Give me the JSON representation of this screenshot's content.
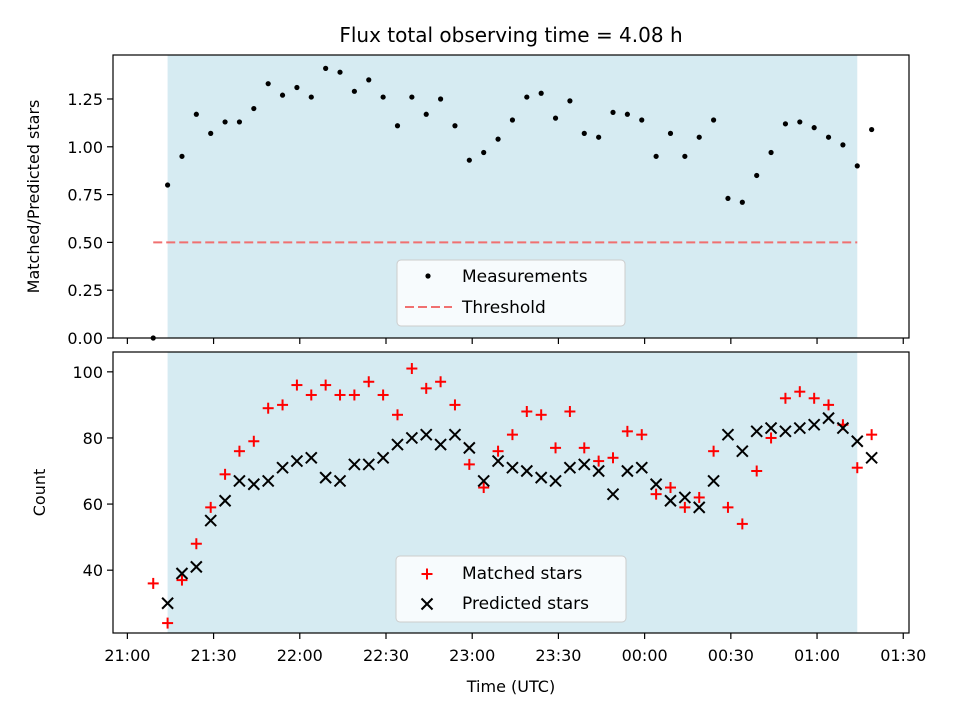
{
  "chart_data": [
    {
      "type": "scatter",
      "title": "Flux total observing time = 4.08 h",
      "xlabel": "",
      "ylabel": "Matched/Predicted stars",
      "xlim_minutes_after_21": [
        -5,
        272
      ],
      "ylim": [
        0,
        1.48
      ],
      "yticks": [
        "0.00",
        "0.25",
        "0.50",
        "0.75",
        "1.00",
        "1.25"
      ],
      "shaded_span_minutes_after_21": [
        14,
        254
      ],
      "shade_color": "#add8e6",
      "threshold": {
        "name": "Threshold",
        "value": 0.5,
        "color": "#f07070",
        "x_start": 9,
        "x_end": 254
      },
      "legend": {
        "position": "bottom-center",
        "entries": [
          "Measurements",
          "Threshold"
        ]
      },
      "series": [
        {
          "name": "Measurements",
          "marker": "dot",
          "color": "#000000",
          "x": [
            9,
            14,
            19,
            24,
            29,
            34,
            39,
            44,
            49,
            54,
            59,
            64,
            69,
            74,
            79,
            84,
            89,
            94,
            99,
            104,
            109,
            114,
            119,
            124,
            129,
            134,
            139,
            144,
            149,
            154,
            159,
            164,
            169,
            174,
            179,
            184,
            189,
            194,
            199,
            204,
            209,
            214,
            219,
            224,
            229,
            234,
            239,
            244,
            249,
            254
          ],
          "values": [
            0.0,
            0.8,
            0.95,
            1.17,
            1.07,
            1.13,
            1.13,
            1.2,
            1.33,
            1.27,
            1.31,
            1.26,
            1.41,
            1.39,
            1.29,
            1.35,
            1.26,
            1.11,
            1.26,
            1.17,
            1.25,
            1.11,
            0.93,
            0.97,
            1.04,
            1.14,
            1.26,
            1.28,
            1.15,
            1.24,
            1.07,
            1.05,
            1.18,
            1.17,
            1.14,
            0.95,
            1.07,
            0.95,
            1.05,
            1.14,
            0.73,
            0.71,
            0.85,
            0.97,
            1.12,
            1.13,
            1.1,
            1.05,
            1.01,
            0.9
          ]
        }
      ],
      "extra_point": {
        "x": 259,
        "value": 1.09
      }
    },
    {
      "type": "scatter",
      "title": "",
      "xlabel": "Time (UTC)",
      "ylabel": "Count",
      "xlim_minutes_after_21": [
        -5,
        272
      ],
      "ylim": [
        21,
        106
      ],
      "yticks": [
        "40",
        "60",
        "80",
        "100"
      ],
      "xticks": [
        "21:00",
        "21:30",
        "22:00",
        "22:30",
        "23:00",
        "23:30",
        "00:00",
        "00:30",
        "01:00",
        "01:30"
      ],
      "shaded_span_minutes_after_21": [
        14,
        254
      ],
      "legend": {
        "position": "bottom-center",
        "entries": [
          "Matched stars",
          "Predicted stars"
        ]
      },
      "series": [
        {
          "name": "Matched stars",
          "marker": "plus",
          "color": "#ff0000",
          "x": [
            9,
            14,
            19,
            24,
            29,
            34,
            39,
            44,
            49,
            54,
            59,
            64,
            69,
            74,
            79,
            84,
            89,
            94,
            99,
            104,
            109,
            114,
            119,
            124,
            129,
            134,
            139,
            144,
            149,
            154,
            159,
            164,
            169,
            174,
            179,
            184,
            189,
            194,
            199,
            204,
            209,
            214,
            219,
            224,
            229,
            234,
            239,
            244,
            249,
            254,
            259
          ],
          "values": [
            36,
            24,
            37,
            48,
            59,
            69,
            76,
            79,
            89,
            90,
            96,
            93,
            96,
            93,
            93,
            97,
            93,
            87,
            101,
            95,
            97,
            90,
            72,
            65,
            76,
            81,
            88,
            87,
            77,
            88,
            77,
            73,
            74,
            82,
            81,
            63,
            65,
            59,
            62,
            76,
            59,
            54,
            70,
            80,
            92,
            94,
            92,
            90,
            84,
            71,
            81
          ]
        },
        {
          "name": "Predicted stars",
          "marker": "x",
          "color": "#000000",
          "x": [
            14,
            19,
            24,
            29,
            34,
            39,
            44,
            49,
            54,
            59,
            64,
            69,
            74,
            79,
            84,
            89,
            94,
            99,
            104,
            109,
            114,
            119,
            124,
            129,
            134,
            139,
            144,
            149,
            154,
            159,
            164,
            169,
            174,
            179,
            184,
            189,
            194,
            199,
            204,
            209,
            214,
            219,
            224,
            229,
            234,
            239,
            244,
            249,
            254,
            259
          ],
          "values": [
            30,
            39,
            41,
            55,
            61,
            67,
            66,
            67,
            71,
            73,
            74,
            68,
            67,
            72,
            72,
            74,
            78,
            80,
            81,
            78,
            81,
            77,
            67,
            73,
            71,
            70,
            68,
            67,
            71,
            72,
            70,
            63,
            70,
            71,
            66,
            61,
            62,
            59,
            67,
            81,
            76,
            82,
            83,
            82,
            83,
            84,
            86,
            83,
            79,
            74
          ]
        }
      ]
    }
  ]
}
